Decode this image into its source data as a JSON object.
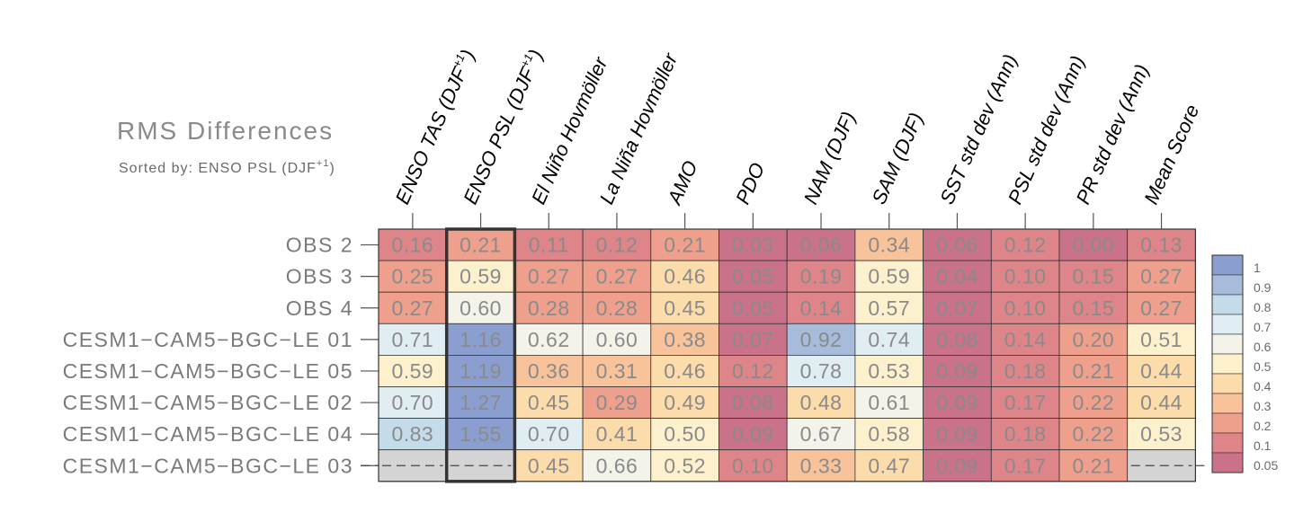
{
  "chart_data": {
    "type": "heatmap",
    "title": "RMS Differences",
    "subtitle": "Sorted by: ENSO PSL (DJF",
    "subtitle_sup": "+1",
    "subtitle_end": ")",
    "highlight_column": 1,
    "columns": [
      {
        "label": "ENSO TAS (DJF",
        "sup": "+1",
        "end": ")"
      },
      {
        "label": "ENSO PSL (DJF",
        "sup": "+1",
        "end": ")"
      },
      {
        "label": "El Niño Hovmöller",
        "sup": "",
        "end": ""
      },
      {
        "label": "La Niña Hovmöller",
        "sup": "",
        "end": ""
      },
      {
        "label": "AMO",
        "sup": "",
        "end": ""
      },
      {
        "label": "PDO",
        "sup": "",
        "end": ""
      },
      {
        "label": "NAM (DJF)",
        "sup": "",
        "end": ""
      },
      {
        "label": "SAM (DJF)",
        "sup": "",
        "end": ""
      },
      {
        "label": "SST std dev (Ann)",
        "sup": "",
        "end": ""
      },
      {
        "label": "PSL std dev (Ann)",
        "sup": "",
        "end": ""
      },
      {
        "label": "PR std dev (Ann)",
        "sup": "",
        "end": ""
      },
      {
        "label": "Mean Score",
        "sup": "",
        "end": ""
      }
    ],
    "rows": [
      {
        "label": "OBS 2",
        "values": [
          0.16,
          0.21,
          0.11,
          0.12,
          0.21,
          0.03,
          0.06,
          0.34,
          0.06,
          0.12,
          0.0,
          0.13
        ]
      },
      {
        "label": "OBS 3",
        "values": [
          0.25,
          0.59,
          0.27,
          0.27,
          0.46,
          0.05,
          0.19,
          0.59,
          0.04,
          0.1,
          0.15,
          0.27
        ]
      },
      {
        "label": "OBS 4",
        "values": [
          0.27,
          0.6,
          0.28,
          0.28,
          0.45,
          0.05,
          0.14,
          0.57,
          0.07,
          0.1,
          0.15,
          0.27
        ]
      },
      {
        "label": "CESM1−CAM5−BGC−LE 01",
        "values": [
          0.71,
          1.16,
          0.62,
          0.6,
          0.38,
          0.07,
          0.92,
          0.74,
          0.08,
          0.14,
          0.2,
          0.51
        ]
      },
      {
        "label": "CESM1−CAM5−BGC−LE 05",
        "values": [
          0.59,
          1.19,
          0.36,
          0.31,
          0.46,
          0.12,
          0.78,
          0.53,
          0.09,
          0.18,
          0.21,
          0.44
        ]
      },
      {
        "label": "CESM1−CAM5−BGC−LE 02",
        "values": [
          0.7,
          1.27,
          0.45,
          0.29,
          0.49,
          0.08,
          0.48,
          0.61,
          0.09,
          0.17,
          0.22,
          0.44
        ]
      },
      {
        "label": "CESM1−CAM5−BGC−LE 04",
        "values": [
          0.83,
          1.55,
          0.7,
          0.41,
          0.5,
          0.09,
          0.67,
          0.58,
          0.09,
          0.18,
          0.22,
          0.53
        ]
      },
      {
        "label": "CESM1−CAM5−BGC−LE 03",
        "values": [
          null,
          null,
          0.45,
          0.66,
          0.52,
          0.1,
          0.33,
          0.47,
          0.09,
          0.17,
          0.21,
          null
        ]
      }
    ],
    "colorbar": {
      "ticks": [
        "1",
        "0.9",
        "0.8",
        "0.7",
        "0.6",
        "0.5",
        "0.4",
        "0.3",
        "0.2",
        "0.1",
        "0.05"
      ],
      "colors": [
        "#8a9fcf",
        "#a7bcdb",
        "#c4dcea",
        "#e0edf3",
        "#f3f3ea",
        "#fdf0cc",
        "#fcdcab",
        "#f8c29a",
        "#eea08c",
        "#de8589",
        "#c9728a"
      ],
      "missing_color": "#d4d4d4"
    }
  }
}
